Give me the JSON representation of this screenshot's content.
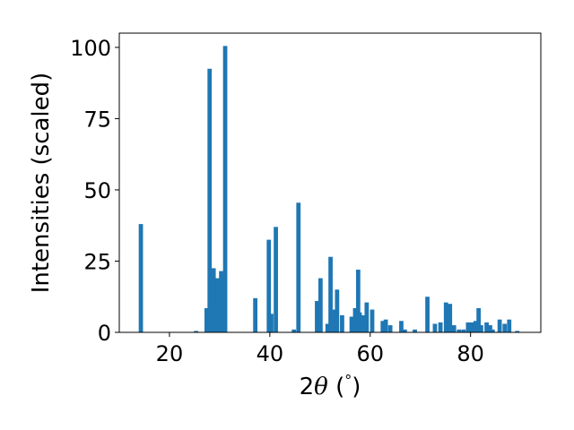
{
  "chart_data": {
    "type": "bar",
    "title": "",
    "xlabel_parts": [
      "2",
      "θ",
      " (",
      "°",
      ")"
    ],
    "ylabel": "Intensities (scaled)",
    "xlim": [
      10,
      94
    ],
    "ylim": [
      0,
      105
    ],
    "xticks": [
      20,
      40,
      60,
      80
    ],
    "yticks": [
      0,
      25,
      50,
      75,
      100
    ],
    "bar_width": 0.85,
    "bar_color": "#1f77b4",
    "grid": false,
    "legend": "none",
    "x": [
      14.3,
      25.3,
      27.4,
      28.0,
      28.8,
      29.6,
      30.3,
      31.1,
      37.1,
      39.8,
      40.3,
      41.2,
      44.8,
      45.7,
      49.4,
      49.9,
      50.1,
      51.5,
      52.1,
      52.9,
      53.4,
      54.4,
      56.3,
      57.0,
      57.6,
      57.9,
      58.6,
      59.3,
      60.4,
      62.5,
      63.1,
      64.0,
      66.2,
      66.9,
      68.9,
      71.4,
      72.9,
      74.0,
      75.1,
      75.9,
      76.7,
      77.7,
      78.6,
      79.5,
      80.3,
      81.0,
      81.6,
      82.1,
      83.2,
      83.9,
      84.4,
      85.8,
      86.8,
      87.7,
      89.3
    ],
    "values": [
      38,
      0.5,
      8.5,
      92.5,
      22.5,
      19,
      21.5,
      100.5,
      12,
      32.5,
      6.5,
      37,
      1,
      45.5,
      11,
      4,
      19,
      3,
      26.5,
      8,
      15,
      6,
      5.5,
      8.5,
      22,
      7,
      6,
      10.5,
      8,
      4,
      4.5,
      2.5,
      4,
      1,
      1,
      12.5,
      3,
      3.5,
      10.5,
      10,
      2.5,
      1,
      1,
      3.5,
      3.5,
      4,
      8.5,
      2.5,
      3.5,
      2.5,
      1,
      4.5,
      3,
      4.5,
      0.5
    ]
  }
}
